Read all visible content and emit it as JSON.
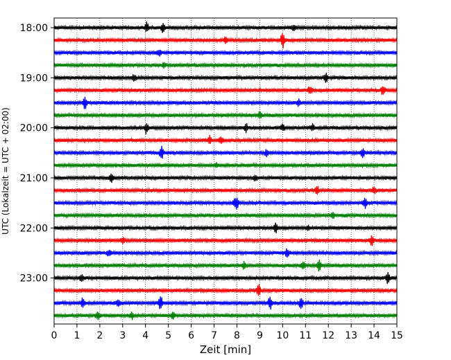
{
  "chart_data": {
    "type": "line",
    "title": "",
    "xlabel": "Zeit  [min]",
    "ylabel": "UTC (Lokalzeit = UTC + 02:00)",
    "xlim": [
      0,
      15
    ],
    "x_ticks": [
      "0",
      "1",
      "2",
      "3",
      "4",
      "5",
      "6",
      "7",
      "8",
      "9",
      "10",
      "11",
      "12",
      "13",
      "14",
      "15"
    ],
    "y_tick_labels": [
      "18:00",
      "19:00",
      "20:00",
      "21:00",
      "22:00",
      "23:00"
    ],
    "grid": "vertical dotted",
    "trace_minutes_per_row": 15,
    "row_color_cycle": [
      "#000000",
      "#ff0000",
      "#0000ff",
      "#008000"
    ],
    "series": [
      {
        "start_utc": "18:00",
        "values": [
          {
            "minute": 4.05,
            "amplitude": 0.5
          },
          {
            "minute": 4.75,
            "amplitude": 0.4
          },
          {
            "minute": 10.5,
            "amplitude": 0.3
          }
        ]
      },
      {
        "start_utc": "18:15",
        "values": [
          {
            "minute": 10.0,
            "amplitude": 0.8
          },
          {
            "minute": 7.5,
            "amplitude": 0.3
          }
        ]
      },
      {
        "start_utc": "18:30",
        "values": [
          {
            "minute": 4.6,
            "amplitude": 0.3
          }
        ]
      },
      {
        "start_utc": "18:45",
        "values": [
          {
            "minute": 4.8,
            "amplitude": 0.2
          }
        ]
      },
      {
        "start_utc": "19:00",
        "values": [
          {
            "minute": 3.5,
            "amplitude": 0.3
          },
          {
            "minute": 11.9,
            "amplitude": 0.5
          }
        ]
      },
      {
        "start_utc": "19:15",
        "values": [
          {
            "minute": 11.2,
            "amplitude": 0.4
          },
          {
            "minute": 14.4,
            "amplitude": 0.5
          }
        ]
      },
      {
        "start_utc": "19:30",
        "values": [
          {
            "minute": 1.35,
            "amplitude": 0.6
          },
          {
            "minute": 10.7,
            "amplitude": 0.3
          }
        ]
      },
      {
        "start_utc": "19:45",
        "values": [
          {
            "minute": 9.0,
            "amplitude": 0.3
          }
        ]
      },
      {
        "start_utc": "20:00",
        "values": [
          {
            "minute": 4.05,
            "amplitude": 0.6
          },
          {
            "minute": 8.4,
            "amplitude": 0.4
          },
          {
            "minute": 11.3,
            "amplitude": 0.3
          },
          {
            "minute": 10.0,
            "amplitude": 0.3
          }
        ]
      },
      {
        "start_utc": "20:15",
        "values": [
          {
            "minute": 6.8,
            "amplitude": 0.4
          },
          {
            "minute": 7.3,
            "amplitude": 0.3
          }
        ]
      },
      {
        "start_utc": "20:30",
        "values": [
          {
            "minute": 4.7,
            "amplitude": 0.6
          },
          {
            "minute": 9.3,
            "amplitude": 0.3
          },
          {
            "minute": 13.5,
            "amplitude": 0.4
          }
        ]
      },
      {
        "start_utc": "20:45",
        "values": [
          {
            "minute": 7.1,
            "amplitude": 0.2
          }
        ]
      },
      {
        "start_utc": "21:00",
        "values": [
          {
            "minute": 2.5,
            "amplitude": 0.4
          },
          {
            "minute": 8.8,
            "amplitude": 0.3
          }
        ]
      },
      {
        "start_utc": "21:15",
        "values": [
          {
            "minute": 11.5,
            "amplitude": 0.5
          },
          {
            "minute": 14.0,
            "amplitude": 0.3
          }
        ]
      },
      {
        "start_utc": "21:30",
        "values": [
          {
            "minute": 7.9,
            "amplitude": 0.3
          },
          {
            "minute": 8.0,
            "amplitude": 0.5
          },
          {
            "minute": 13.6,
            "amplitude": 0.5
          }
        ]
      },
      {
        "start_utc": "21:45",
        "values": [
          {
            "minute": 12.2,
            "amplitude": 0.3
          }
        ]
      },
      {
        "start_utc": "22:00",
        "values": [
          {
            "minute": 9.7,
            "amplitude": 0.4
          },
          {
            "minute": 11.1,
            "amplitude": 0.2
          }
        ]
      },
      {
        "start_utc": "22:15",
        "values": [
          {
            "minute": 13.9,
            "amplitude": 0.5
          },
          {
            "minute": 3.0,
            "amplitude": 0.3
          }
        ]
      },
      {
        "start_utc": "22:30",
        "values": [
          {
            "minute": 10.2,
            "amplitude": 0.4
          },
          {
            "minute": 2.4,
            "amplitude": 0.3
          }
        ]
      },
      {
        "start_utc": "22:45",
        "values": [
          {
            "minute": 11.6,
            "amplitude": 0.5
          },
          {
            "minute": 10.9,
            "amplitude": 0.4
          },
          {
            "minute": 8.3,
            "amplitude": 0.3
          }
        ]
      },
      {
        "start_utc": "23:00",
        "values": [
          {
            "minute": 14.6,
            "amplitude": 0.5
          },
          {
            "minute": 1.2,
            "amplitude": 0.3
          }
        ]
      },
      {
        "start_utc": "23:15",
        "values": [
          {
            "minute": 8.95,
            "amplitude": 0.6
          }
        ]
      },
      {
        "start_utc": "23:30",
        "values": [
          {
            "minute": 1.25,
            "amplitude": 0.5
          },
          {
            "minute": 4.65,
            "amplitude": 0.8
          },
          {
            "minute": 9.45,
            "amplitude": 0.6
          },
          {
            "minute": 10.8,
            "amplitude": 0.5
          },
          {
            "minute": 2.8,
            "amplitude": 0.3
          }
        ]
      },
      {
        "start_utc": "23:45",
        "values": [
          {
            "minute": 1.9,
            "amplitude": 0.4
          },
          {
            "minute": 3.4,
            "amplitude": 0.3
          },
          {
            "minute": 5.2,
            "amplitude": 0.3
          }
        ]
      }
    ]
  }
}
